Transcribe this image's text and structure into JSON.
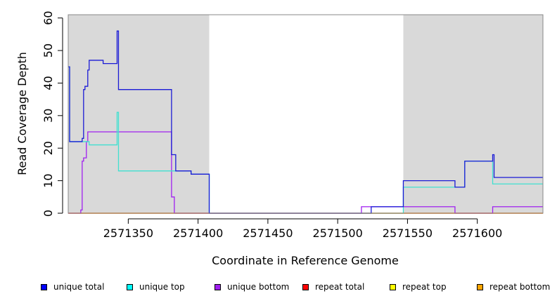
{
  "chart_data": {
    "type": "line",
    "step": true,
    "title": "",
    "xlabel": "Coordinate in Reference Genome",
    "ylabel": "Read Coverage Depth",
    "xlim": [
      2571307,
      2571647
    ],
    "ylim": [
      0,
      61
    ],
    "xticks": [
      2571350,
      2571400,
      2571450,
      2571500,
      2571550,
      2571600
    ],
    "yticks": [
      0,
      10,
      20,
      30,
      40,
      50,
      60
    ],
    "grid": false,
    "shaded_regions": [
      {
        "x_start": 2571307,
        "x_end": 2571408
      },
      {
        "x_start": 2571547,
        "x_end": 2571647
      }
    ],
    "series": [
      {
        "name": "unique total",
        "color": "#1a1ad6",
        "points": [
          [
            2571307,
            45
          ],
          [
            2571308,
            22
          ],
          [
            2571317,
            23
          ],
          [
            2571318,
            38
          ],
          [
            2571319,
            39
          ],
          [
            2571321,
            44
          ],
          [
            2571322,
            47
          ],
          [
            2571332,
            46
          ],
          [
            2571342,
            56
          ],
          [
            2571343,
            38
          ],
          [
            2571381,
            18
          ],
          [
            2571384,
            13
          ],
          [
            2571395,
            12
          ],
          [
            2571408,
            0
          ],
          [
            2571524,
            2
          ],
          [
            2571547,
            10
          ],
          [
            2571584,
            8
          ],
          [
            2571591,
            16
          ],
          [
            2571611,
            18
          ],
          [
            2571612,
            11
          ],
          [
            2571647,
            11
          ]
        ]
      },
      {
        "name": "unique top",
        "color": "#40e0d0",
        "points": [
          [
            2571307,
            45
          ],
          [
            2571308,
            22
          ],
          [
            2571322,
            21
          ],
          [
            2571336,
            21
          ],
          [
            2571342,
            31
          ],
          [
            2571343,
            13
          ],
          [
            2571384,
            13
          ],
          [
            2571395,
            12
          ],
          [
            2571408,
            0
          ],
          [
            2571547,
            8
          ],
          [
            2571591,
            16
          ],
          [
            2571611,
            9
          ],
          [
            2571647,
            9
          ]
        ]
      },
      {
        "name": "unique bottom",
        "color": "#a020f0",
        "points": [
          [
            2571307,
            0
          ],
          [
            2571316,
            1
          ],
          [
            2571317,
            16
          ],
          [
            2571318,
            17
          ],
          [
            2571320,
            22
          ],
          [
            2571321,
            25
          ],
          [
            2571381,
            5
          ],
          [
            2571383,
            0
          ],
          [
            2571517,
            2
          ],
          [
            2571584,
            0
          ],
          [
            2571611,
            2
          ],
          [
            2571647,
            2
          ]
        ]
      },
      {
        "name": "repeat total",
        "color": "#ff0000",
        "points": [
          [
            2571307,
            0
          ],
          [
            2571647,
            0
          ]
        ]
      },
      {
        "name": "repeat top",
        "color": "#ffff00",
        "points": [
          [
            2571307,
            0
          ],
          [
            2571647,
            0
          ]
        ]
      },
      {
        "name": "repeat bottom",
        "color": "#ffa500",
        "points": [
          [
            2571307,
            0
          ],
          [
            2571647,
            0
          ]
        ]
      }
    ],
    "legend_position": "bottom"
  },
  "legend": [
    {
      "label": "unique total",
      "color": "#0000ff"
    },
    {
      "label": "unique top",
      "color": "#00ffff"
    },
    {
      "label": "unique bottom",
      "color": "#a020f0"
    },
    {
      "label": "repeat total",
      "color": "#ff0000"
    },
    {
      "label": "repeat top",
      "color": "#ffff00"
    },
    {
      "label": "repeat bottom",
      "color": "#ffa500"
    }
  ]
}
